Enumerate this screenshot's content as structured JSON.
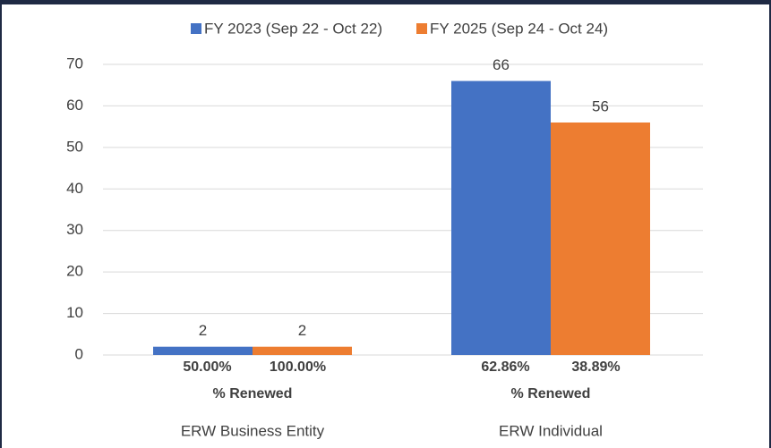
{
  "chart_data": {
    "type": "bar",
    "categories": [
      "ERW Business Entity",
      "ERW Individual"
    ],
    "series": [
      {
        "name": "FY 2023 (Sep 22 - Oct 22)",
        "color": "#4472c4",
        "values": [
          2,
          66
        ],
        "renewed_labels": [
          "50.00%",
          "62.86%"
        ]
      },
      {
        "name": "FY 2025 (Sep 24 - Oct 24)",
        "color": "#ed7d31",
        "values": [
          2,
          56
        ],
        "renewed_labels": [
          "100.00%",
          "38.89%"
        ]
      }
    ],
    "renewed_caption": "% Renewed",
    "ylim": [
      0,
      70
    ],
    "yticks": [
      0,
      10,
      20,
      30,
      40,
      50,
      60,
      70
    ],
    "grid": true,
    "legend": "top"
  }
}
